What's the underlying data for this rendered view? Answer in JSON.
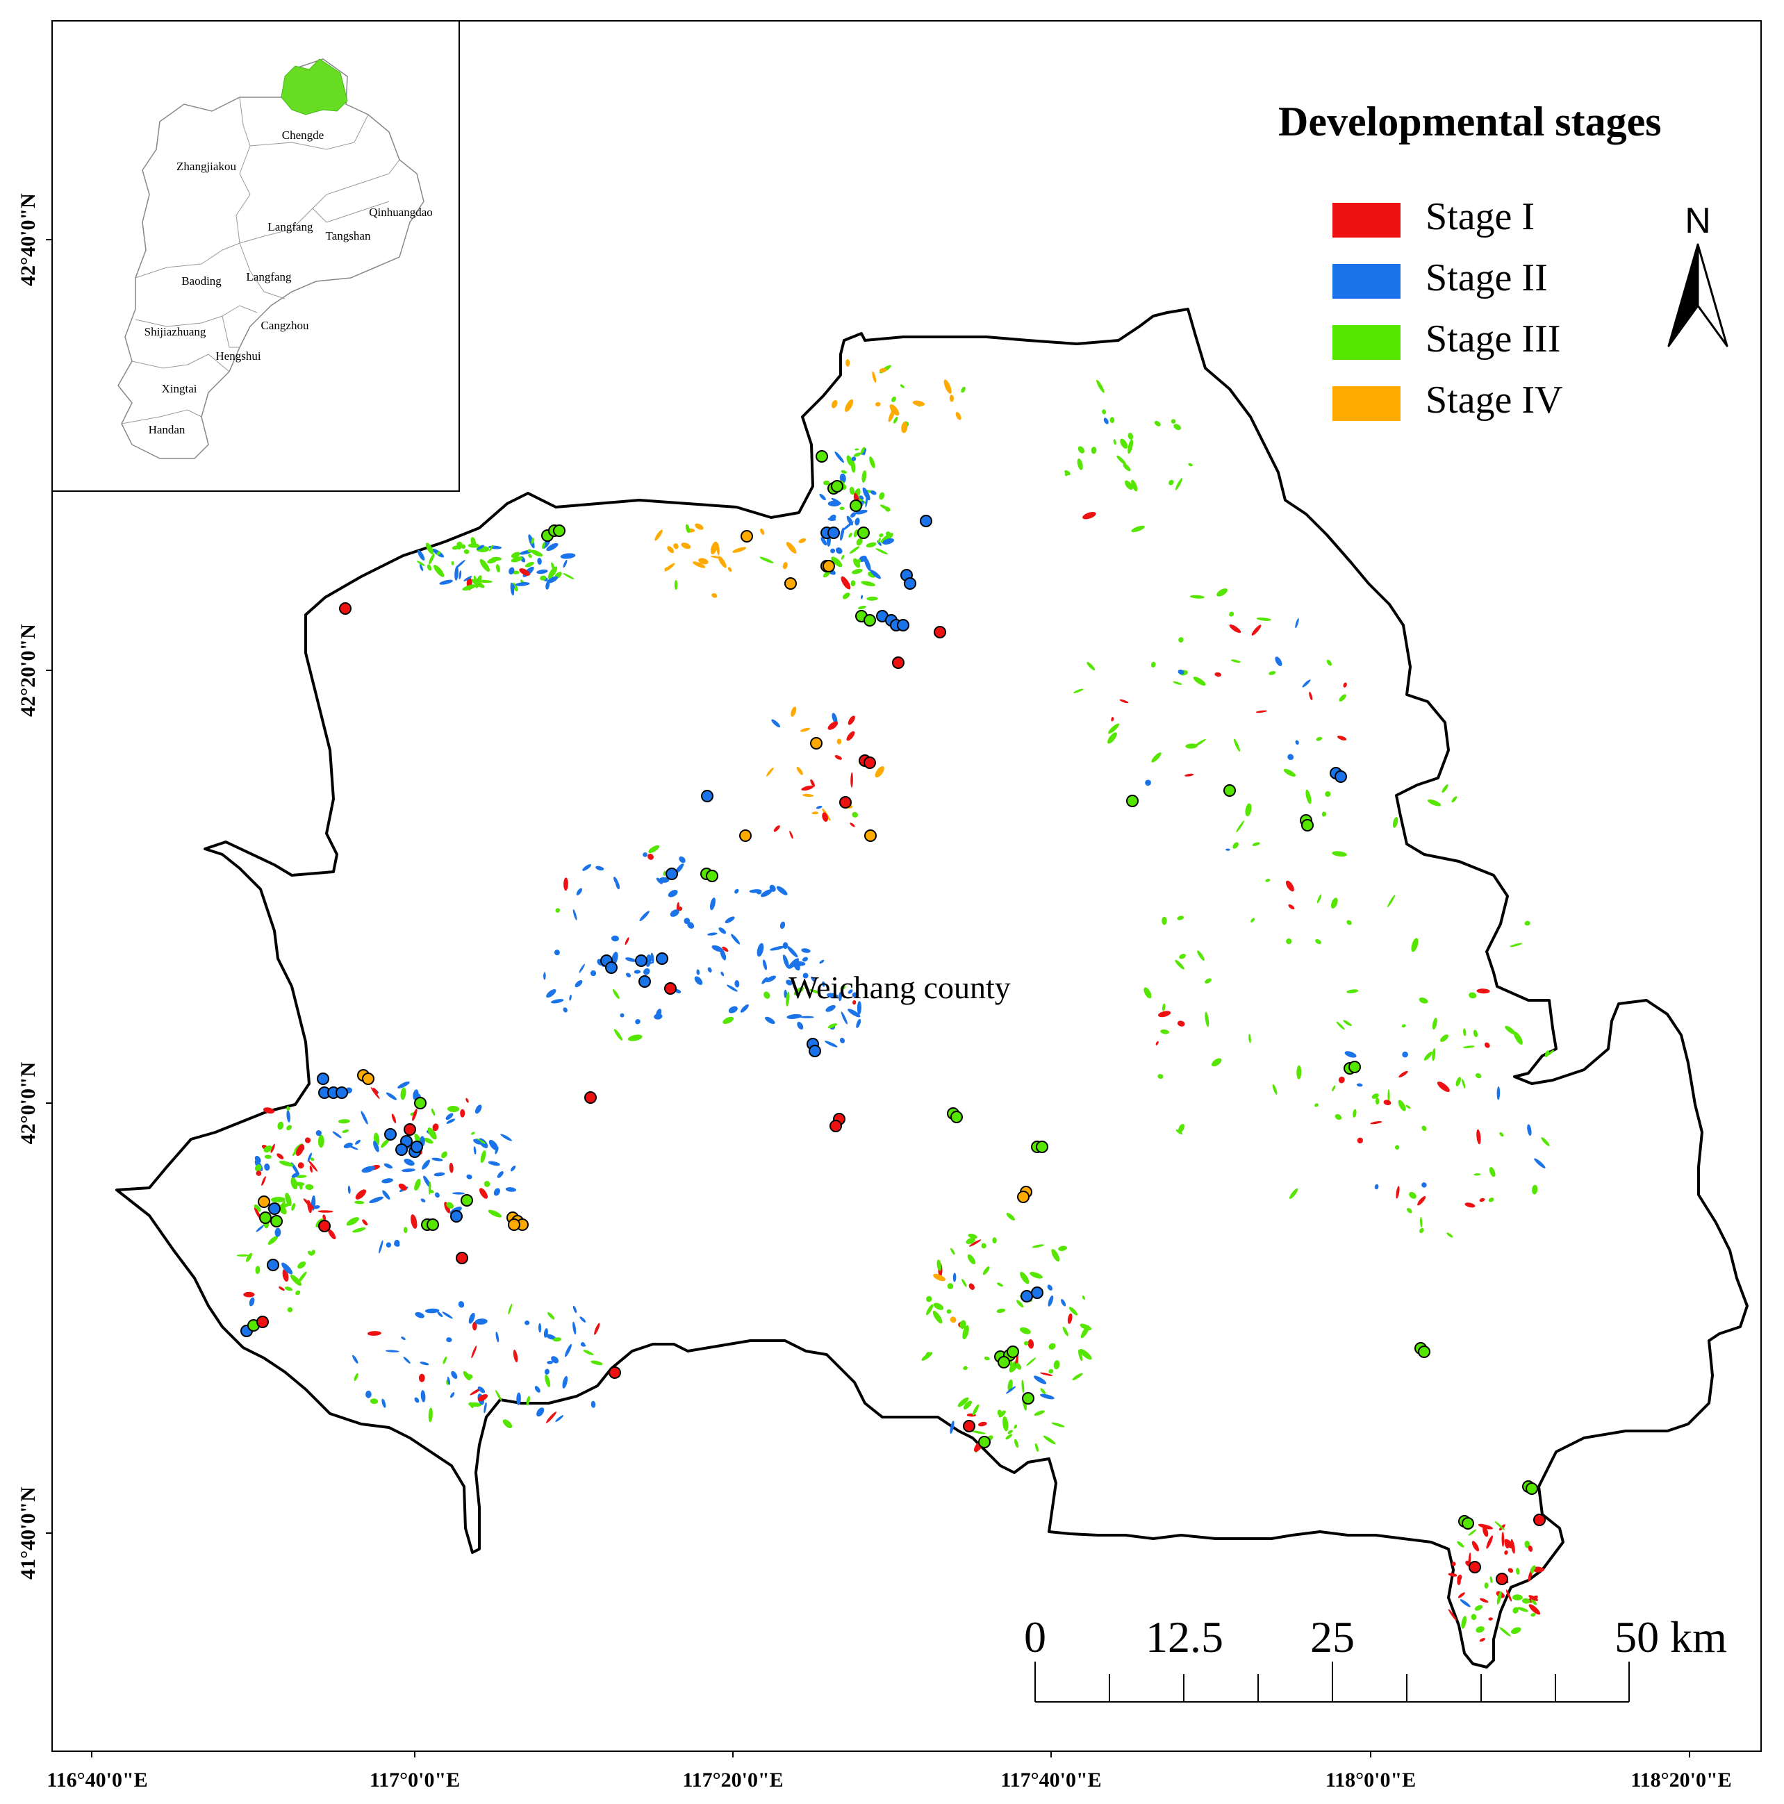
{
  "legend": {
    "title": "Developmental stages",
    "items": [
      {
        "label": "Stage I",
        "color": "#ee1111"
      },
      {
        "label": "Stage II",
        "color": "#1a73e8"
      },
      {
        "label": "Stage III",
        "color": "#55e600"
      },
      {
        "label": "Stage IV",
        "color": "#ffaa00"
      }
    ]
  },
  "north_arrow": {
    "label": "N",
    "icon": "north-arrow-icon"
  },
  "county_label": "Weichang county",
  "scale_bar": {
    "labels": [
      "0",
      "12.5",
      "25",
      "50 km"
    ]
  },
  "axes": {
    "x_ticks": [
      "116°40'0\"E",
      "117°0'0\"E",
      "117°20'0\"E",
      "117°40'0\"E",
      "118°0'0\"E",
      "118°20'0\"E"
    ],
    "y_ticks": [
      "42°40'0\"N",
      "42°20'0\"N",
      "42°0'0\"N",
      "41°40'0\"N"
    ]
  },
  "inset": {
    "highlight_color": "#66dd22",
    "cities": [
      "Chengde",
      "Zhangjiakou",
      "Qinhuangdao",
      "Langfang",
      "Tangshan",
      "Baoding",
      "Langfang",
      "Shijiazhuang",
      "Cangzhou",
      "Hengshui",
      "Xingtai",
      "Handan"
    ]
  }
}
